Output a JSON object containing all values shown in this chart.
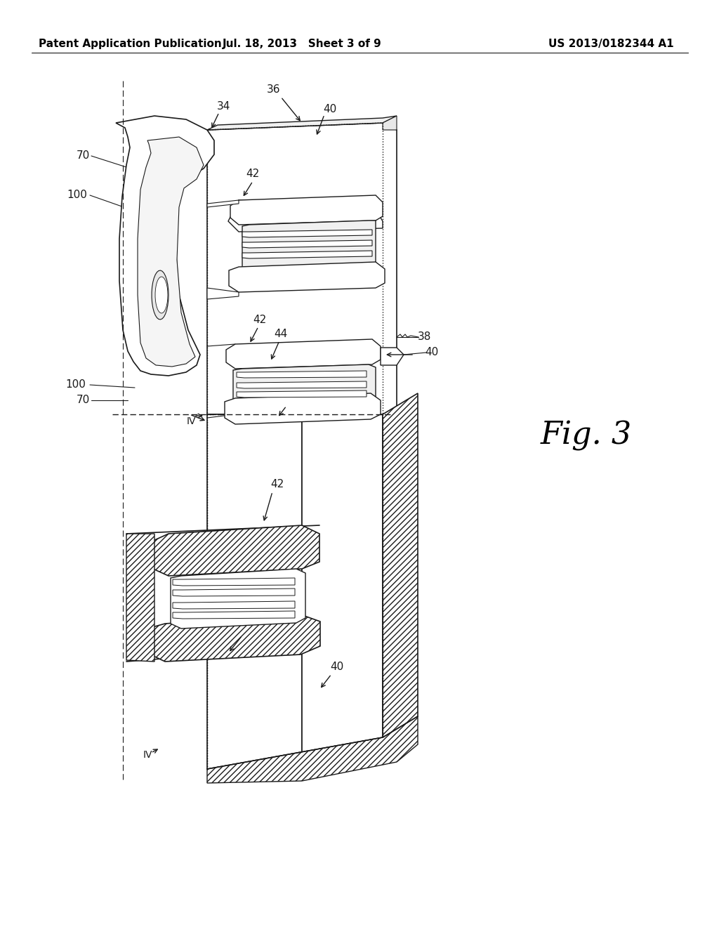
{
  "bg_color": "#ffffff",
  "header_left": "Patent Application Publication",
  "header_center": "Jul. 18, 2013   Sheet 3 of 9",
  "header_right": "US 2013/0182344 A1",
  "fig_label": "Fig. 3",
  "line_color": "#1a1a1a",
  "hatch_color": "#555555"
}
